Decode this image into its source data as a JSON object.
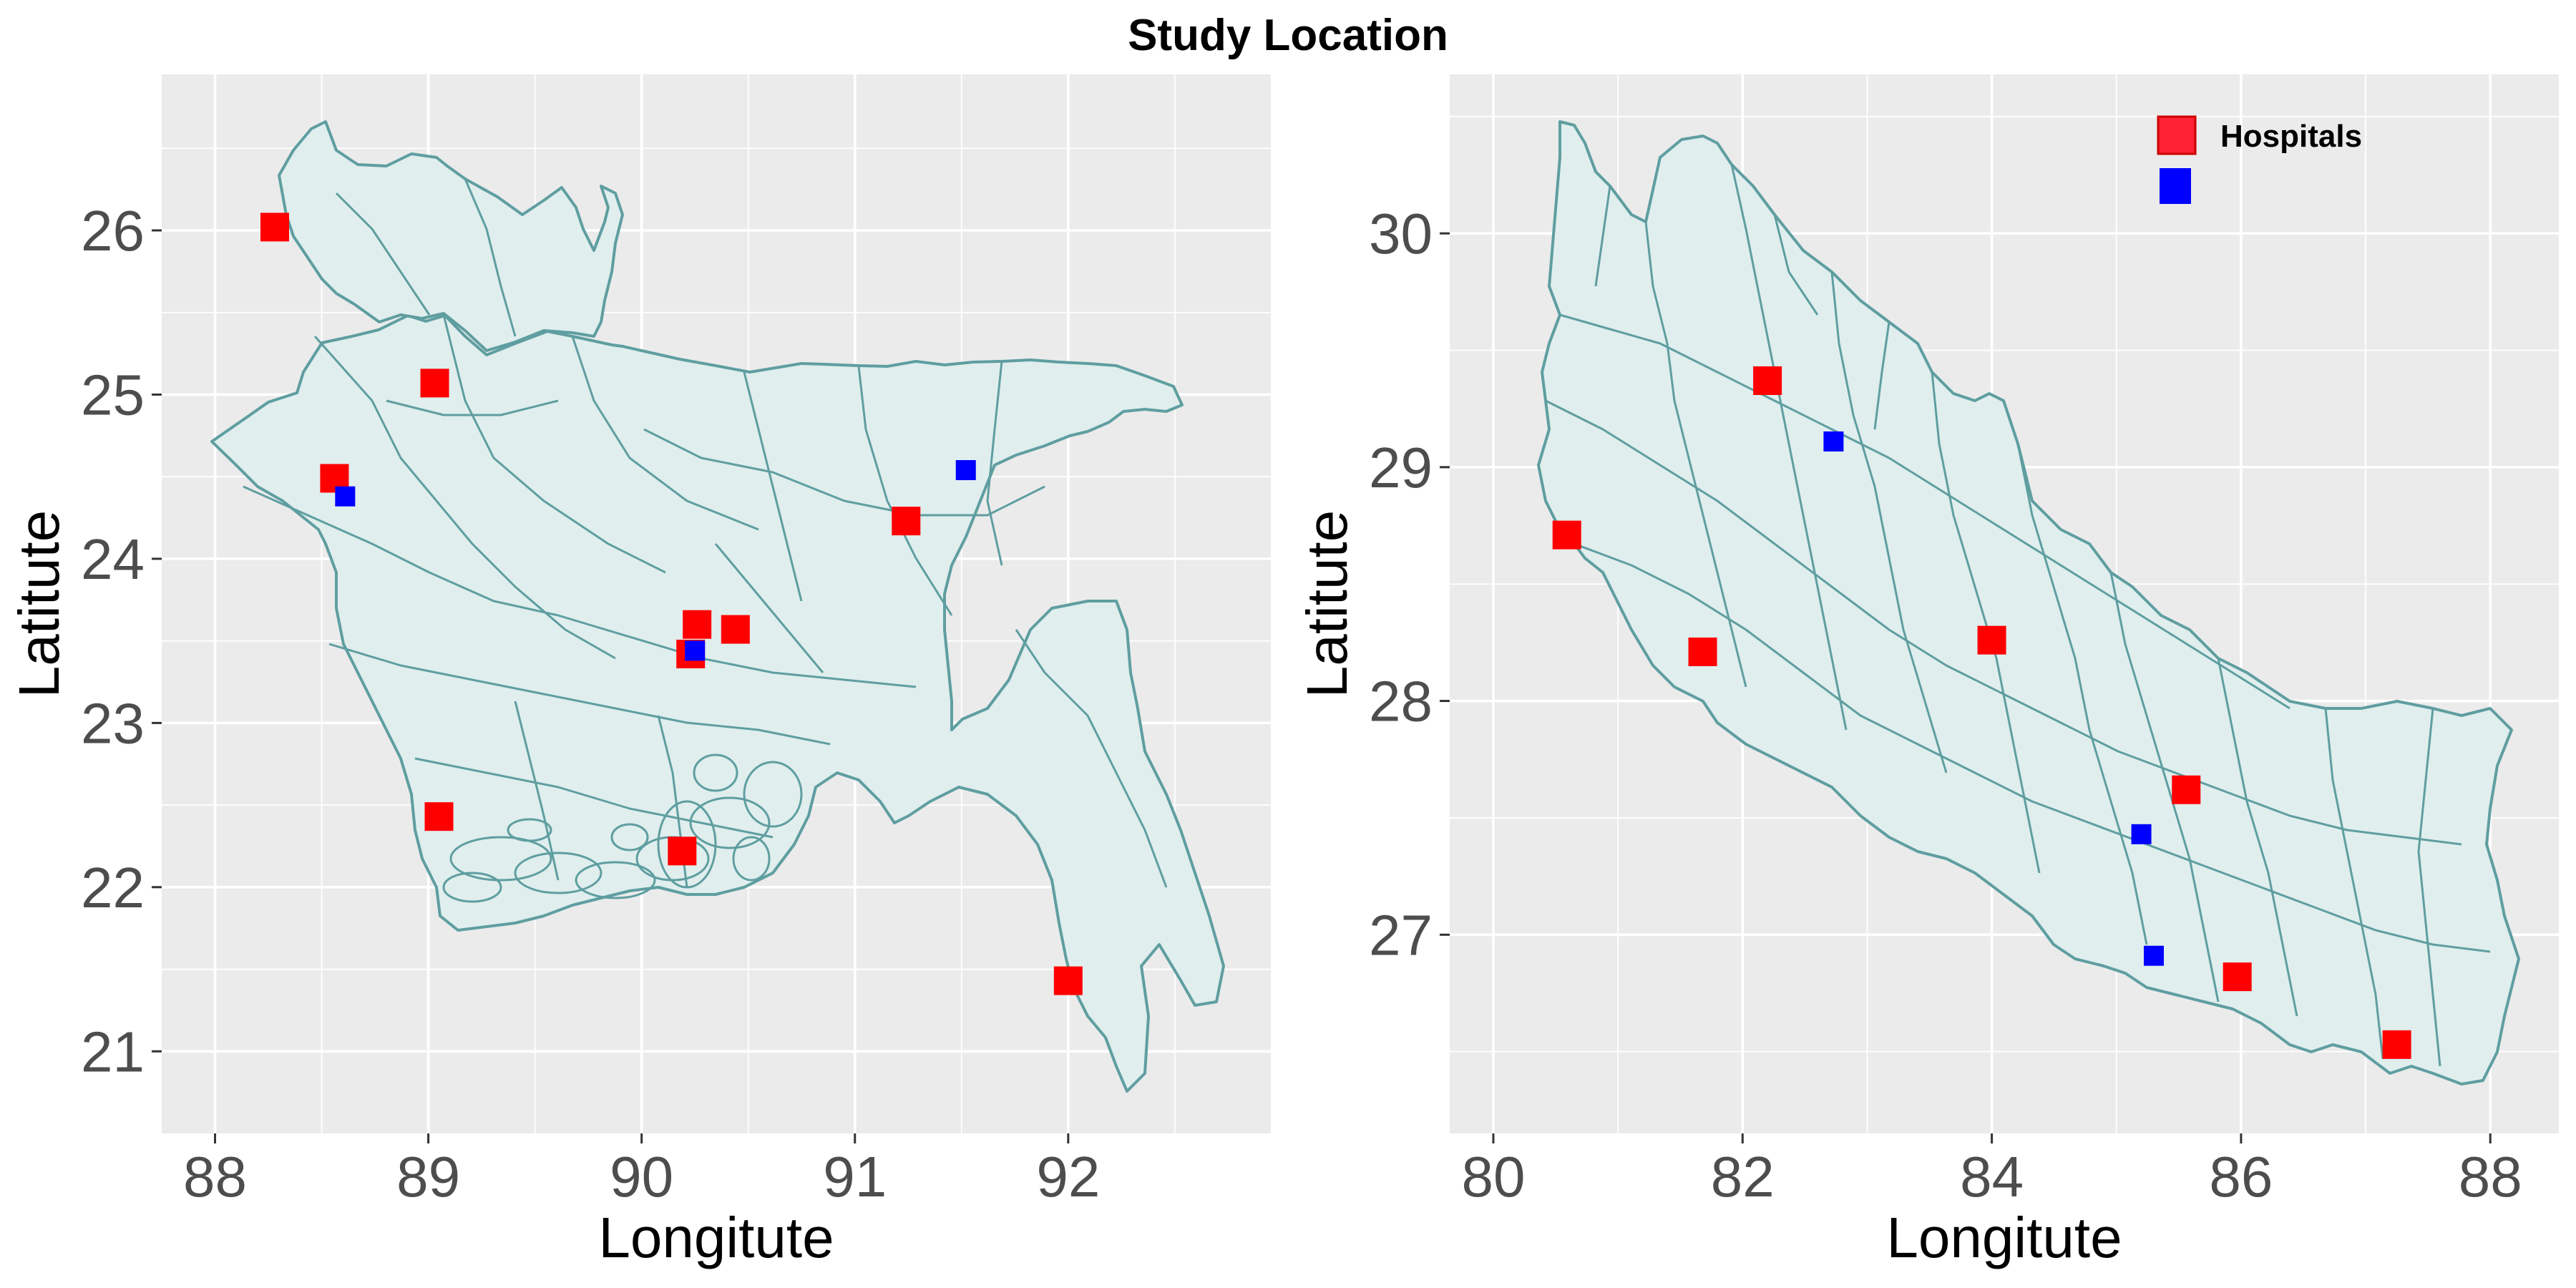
{
  "title": "Study Location",
  "colors": {
    "panel_background": "#ebebeb",
    "land_fill": "#e0eeee",
    "boundary": "#5f9ea0",
    "hospital": "#ff0000",
    "legend_hospital": "#ff2233",
    "blue_marker": "#0000ff"
  },
  "legend": {
    "position": "top-right",
    "items": [
      {
        "label": "Hospitals",
        "color": "#ff2233",
        "icon": "red-square"
      },
      {
        "label": "",
        "color": "#0000ff",
        "icon": "blue-square"
      }
    ]
  },
  "chart_data": [
    {
      "type": "scatter",
      "region": "Bangladesh",
      "xlabel": "Longitute",
      "ylabel": "Latitute",
      "xlim": [
        87.75,
        92.95
      ],
      "ylim": [
        20.5,
        26.95
      ],
      "x_ticks": [
        88,
        89,
        90,
        91,
        92
      ],
      "y_ticks": [
        21,
        22,
        23,
        24,
        25,
        26
      ],
      "grid": true,
      "series": [
        {
          "name": "Hospitals",
          "color": "#ff0000",
          "points": [
            [
              88.28,
              26.02
            ],
            [
              89.03,
              25.07
            ],
            [
              88.56,
              24.49
            ],
            [
              91.24,
              24.23
            ],
            [
              90.26,
              23.6
            ],
            [
              90.44,
              23.57
            ],
            [
              90.23,
              23.42
            ],
            [
              89.05,
              22.43
            ],
            [
              90.19,
              22.22
            ],
            [
              92.0,
              21.43
            ]
          ]
        },
        {
          "name": "",
          "color": "#0000ff",
          "points": [
            [
              88.61,
              24.38
            ],
            [
              91.52,
              24.54
            ],
            [
              90.25,
              23.44
            ]
          ]
        }
      ]
    },
    {
      "type": "scatter",
      "region": "Nepal",
      "xlabel": "Longitute",
      "ylabel": "Latitute",
      "xlim": [
        79.65,
        88.55
      ],
      "ylim": [
        26.15,
        30.68
      ],
      "x_ticks": [
        80,
        82,
        84,
        86,
        88
      ],
      "y_ticks": [
        27,
        28,
        29,
        30
      ],
      "grid": true,
      "series": [
        {
          "name": "Hospitals",
          "color": "#ff0000",
          "points": [
            [
              82.2,
              29.37
            ],
            [
              80.59,
              28.71
            ],
            [
              81.68,
              28.21
            ],
            [
              84.0,
              28.26
            ],
            [
              85.56,
              27.62
            ],
            [
              85.97,
              26.82
            ],
            [
              87.25,
              26.53
            ]
          ]
        },
        {
          "name": "",
          "color": "#0000ff",
          "points": [
            [
              82.73,
              29.11
            ],
            [
              85.2,
              27.43
            ],
            [
              85.3,
              26.91
            ]
          ]
        }
      ]
    }
  ]
}
